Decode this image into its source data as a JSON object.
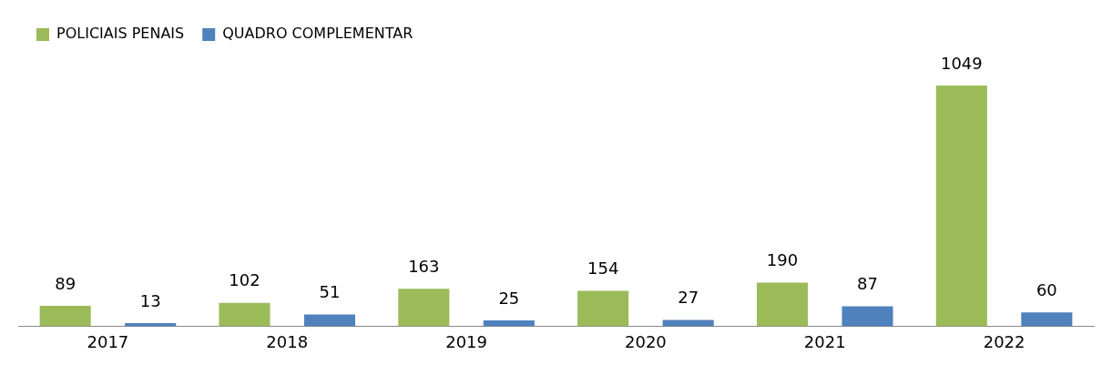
{
  "chart_data": {
    "type": "bar",
    "categories": [
      "2017",
      "2018",
      "2019",
      "2020",
      "2021",
      "2022"
    ],
    "series": [
      {
        "name": "POLICIAIS PENAIS",
        "color": "#9bbb59",
        "values": [
          89,
          102,
          163,
          154,
          190,
          1049
        ]
      },
      {
        "name": "QUADRO COMPLEMENTAR",
        "color": "#4f81bd",
        "values": [
          13,
          51,
          25,
          27,
          87,
          60
        ]
      }
    ],
    "data_labels": true,
    "legend": "top",
    "grid": false
  }
}
